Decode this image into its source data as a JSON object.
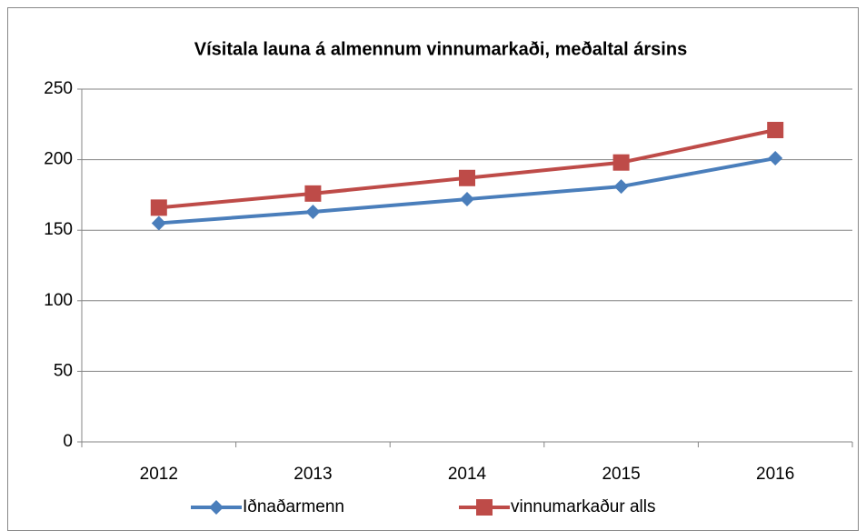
{
  "chart_data": {
    "type": "line",
    "title": "Vísitala launa á almennum vinnumarkaði, meðaltal ársins",
    "categories": [
      "2012",
      "2013",
      "2014",
      "2015",
      "2016"
    ],
    "series": [
      {
        "name": "Iðnaðarmenn",
        "color": "#4a7ebb",
        "marker": "diamond",
        "values": [
          155,
          163,
          172,
          181,
          201
        ]
      },
      {
        "name": "vinnumarkaður alls",
        "color": "#be4b48",
        "marker": "square",
        "values": [
          166,
          176,
          187,
          198,
          221
        ]
      }
    ],
    "ylim": [
      0,
      250
    ],
    "yticks": [
      0,
      50,
      100,
      150,
      200,
      250
    ],
    "grid": true,
    "legend": "bottom"
  }
}
